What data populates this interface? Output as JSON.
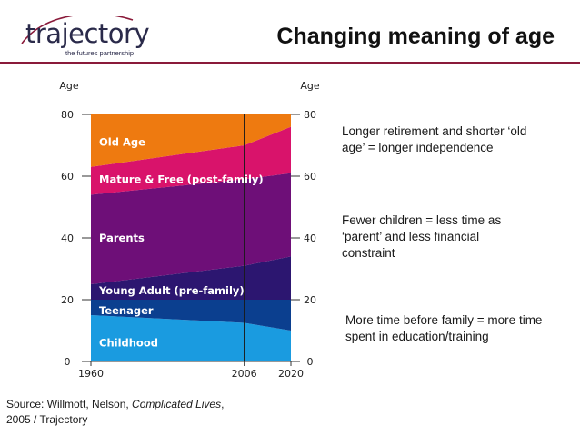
{
  "header": {
    "logo_main": "trajectory",
    "logo_sub": "the futures partnership",
    "title": "Changing meaning of age"
  },
  "annotations": [
    "Longer retirement and shorter ‘old age’ = longer independence",
    "Fewer children = less time as ‘parent’ and less financial constraint",
    "More time before family = more time spent in education/training"
  ],
  "source": {
    "prefix": "Source: Willmott, Nelson, ",
    "title_italic": "Complicated Lives",
    "suffix": ",",
    "line2": "2005 / Trajectory"
  },
  "colors": {
    "childhood": "#1a9be0",
    "teenager": "#0b3f8f",
    "young_adult": "#2c1670",
    "parents": "#6e0f78",
    "mature": "#d9136b",
    "old_age": "#ee7a10",
    "accent": "#8a1a3a"
  },
  "chart_data": {
    "type": "area",
    "x": [
      1960,
      2006,
      2020
    ],
    "xlim": [
      1960,
      2020
    ],
    "ylim": [
      0,
      80
    ],
    "yticks": [
      0,
      20,
      40,
      60,
      80
    ],
    "xticks": [
      1960,
      2006,
      2020
    ],
    "ylabel_left": "Age",
    "ylabel_right": "Age",
    "vline": 2006,
    "bands": [
      {
        "name": "Childhood",
        "color": "childhood",
        "lower": [
          0,
          0,
          0
        ],
        "upper": [
          15,
          12.5,
          10
        ]
      },
      {
        "name": "Teenager",
        "color": "teenager",
        "lower": [
          15,
          12.5,
          10
        ],
        "upper": [
          20,
          20,
          20
        ]
      },
      {
        "name": "Young Adult (pre-family)",
        "color": "young_adult",
        "lower": [
          20,
          20,
          20
        ],
        "upper": [
          25,
          31,
          34
        ]
      },
      {
        "name": "Parents",
        "color": "parents",
        "lower": [
          25,
          31,
          34
        ],
        "upper": [
          54,
          59,
          61
        ]
      },
      {
        "name": "Mature & Free (post-family)",
        "color": "mature",
        "lower": [
          54,
          59,
          61
        ],
        "upper": [
          63,
          70,
          76
        ]
      },
      {
        "name": "Old Age",
        "color": "old_age",
        "lower": [
          63,
          70,
          76
        ],
        "upper": [
          80,
          80,
          80
        ]
      }
    ],
    "band_labels": [
      {
        "text": "Old Age",
        "age": 71
      },
      {
        "text": "Mature & Free (post-family)",
        "age": 59
      },
      {
        "text": "Parents",
        "age": 40
      },
      {
        "text": "Young Adult (pre-family)",
        "age": 23
      },
      {
        "text": "Teenager",
        "age": 16.5
      },
      {
        "text": "Childhood",
        "age": 6
      }
    ]
  }
}
